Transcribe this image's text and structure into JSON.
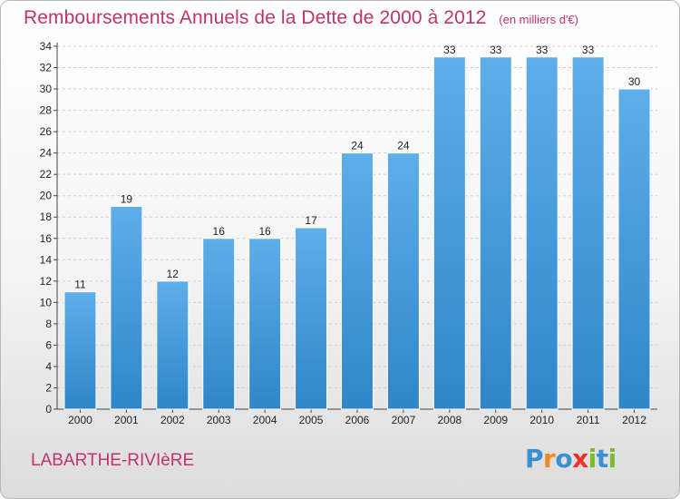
{
  "title": {
    "main": "Remboursements Annuels de la Dette de 2000 à 2012",
    "unit": "(en milliers d'€)"
  },
  "commune": "LABARTHE-RIVIèRE",
  "logo": {
    "text": "Proxiti",
    "letters": [
      {
        "ch": "P",
        "color": "#3a8fd1"
      },
      {
        "ch": "r",
        "color": "#f08a1c"
      },
      {
        "ch": "o",
        "color": "#3a8fd1"
      },
      {
        "ch": "x",
        "color": "#e8342a"
      },
      {
        "ch": "i",
        "color": "#7cbb2c"
      },
      {
        "ch": "t",
        "color": "#3a8fd1"
      },
      {
        "ch": "i",
        "color": "#7cbb2c"
      }
    ]
  },
  "colors": {
    "bar_top": "#5eaeea",
    "bar_bottom": "#2f86c8",
    "grid": "#cccccc",
    "title": "#c0336b"
  },
  "chart_data": {
    "type": "bar",
    "categories": [
      "2000",
      "2001",
      "2002",
      "2003",
      "2004",
      "2005",
      "2006",
      "2007",
      "2008",
      "2009",
      "2010",
      "2011",
      "2012"
    ],
    "values": [
      11,
      19,
      12,
      16,
      16,
      17,
      24,
      24,
      33,
      33,
      33,
      33,
      30
    ],
    "ylim": [
      0,
      34
    ],
    "yticks": [
      0,
      2,
      4,
      6,
      8,
      10,
      12,
      14,
      16,
      18,
      20,
      22,
      24,
      26,
      28,
      30,
      32,
      34
    ],
    "grid": "horizontal dashed",
    "data_labels": true
  }
}
